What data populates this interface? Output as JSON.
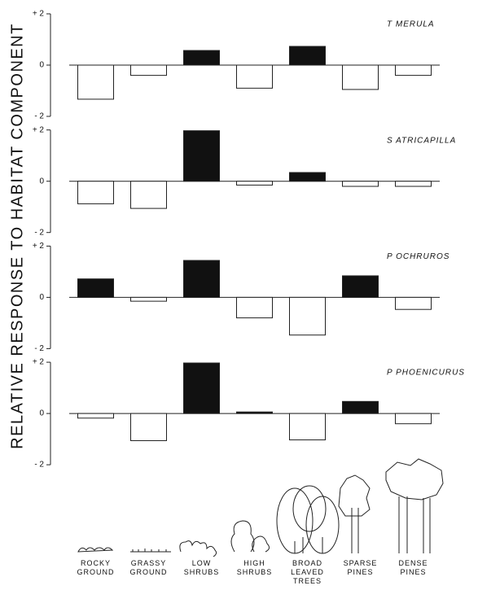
{
  "y_label": "RELATIVE RESPONSE TO HABITAT COMPONENT",
  "chart_data": [
    {
      "type": "bar",
      "title": "T MERULA",
      "values": [
        -1.33,
        -0.4,
        0.57,
        -0.9,
        0.73,
        -0.95,
        -0.4
      ],
      "ylim": [
        -2,
        2
      ],
      "yticks": [
        {
          "value": -2,
          "label": "- 2"
        },
        0,
        {
          "value": 2,
          "label": "+ 2"
        }
      ],
      "color_positive": "#111111",
      "color_negative": "#ffffff"
    },
    {
      "type": "bar",
      "title": "S ATRICAPILLA",
      "values": [
        -0.88,
        -1.06,
        1.97,
        -0.15,
        0.34,
        -0.2,
        -0.2
      ],
      "ylim": [
        -2,
        2
      ],
      "yticks": [
        {
          "value": -2,
          "label": "- 2"
        },
        0,
        {
          "value": 2,
          "label": "+ 2"
        }
      ],
      "color_positive": "#111111",
      "color_negative": "#ffffff"
    },
    {
      "type": "bar",
      "title": "P OCHRUROS",
      "values": [
        0.72,
        -0.15,
        1.44,
        -0.8,
        -1.47,
        0.84,
        -0.47
      ],
      "ylim": [
        -2,
        2
      ],
      "yticks": [
        {
          "value": -2,
          "label": "- 2"
        },
        0,
        {
          "value": 2,
          "label": "+ 2"
        }
      ],
      "color_positive": "#111111",
      "color_negative": "#ffffff"
    },
    {
      "type": "bar",
      "title": "P PHOENICURUS",
      "values": [
        -0.18,
        -1.06,
        1.97,
        0.06,
        -1.03,
        0.47,
        -0.4
      ],
      "ylim": [
        -2,
        2
      ],
      "yticks": [
        {
          "value": -2,
          "label": "- 2"
        },
        0,
        {
          "value": 2,
          "label": "+ 2"
        }
      ],
      "color_positive": "#111111",
      "color_negative": "#ffffff",
      "categories": [
        "ROCKY\nGROUND",
        "GRASSY\nGROUND",
        "LOW\nSHRUBS",
        "HIGH\nSHRUBS",
        "BROAD\nLEAVED\nTREES",
        "SPARSE\nPINES",
        "DENSE\nPINES"
      ]
    }
  ]
}
